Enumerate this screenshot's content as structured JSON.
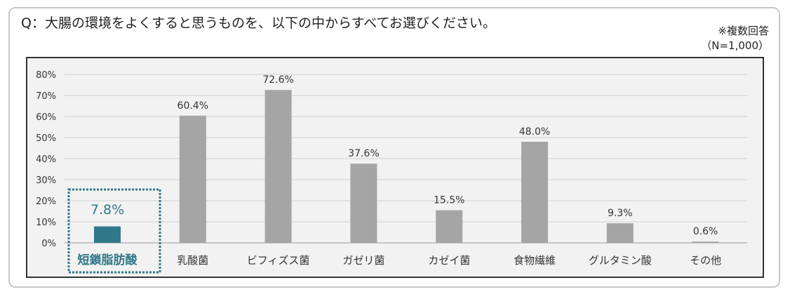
{
  "question": "Q：大腸の環境をよくすると思うものを、以下の中からすべてお選びください。",
  "note": {
    "multiple_answer": "※複数回答",
    "sample_size": "（N=1,000）"
  },
  "colors": {
    "highlight": "#31788a",
    "bar": "#a5a5a5",
    "grid": "#d0d0d0",
    "background": "#f2f2f2"
  },
  "chart_data": {
    "type": "bar",
    "categories": [
      "短鎖脂肪酸",
      "乳酸菌",
      "ビフィズス菌",
      "ガゼリ菌",
      "カゼイ菌",
      "食物繊維",
      "グルタミン酸",
      "その他"
    ],
    "values": [
      7.8,
      60.4,
      72.6,
      37.6,
      15.5,
      48.0,
      9.3,
      0.6
    ],
    "data_labels": [
      "7.8%",
      "60.4%",
      "72.6%",
      "37.6%",
      "15.5%",
      "48.0%",
      "9.3%",
      "0.6%"
    ],
    "y_ticks": [
      "0%",
      "10%",
      "20%",
      "30%",
      "40%",
      "50%",
      "60%",
      "70%",
      "80%"
    ],
    "ylim": [
      0,
      80
    ],
    "highlighted_category": "短鎖脂肪酸",
    "grid": true
  }
}
